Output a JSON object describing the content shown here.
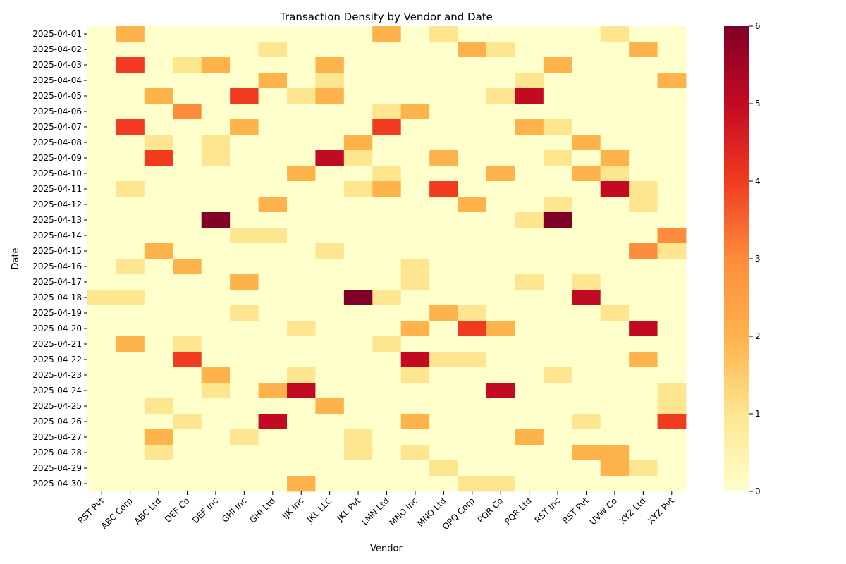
{
  "chart_data": {
    "type": "heatmap",
    "title": "Transaction Density by Vendor and Date",
    "xlabel": "Vendor",
    "ylabel": "Date",
    "x": [
      "RST Pvt",
      "ABC Corp",
      "ABC Ltd",
      "DEF Co",
      "DEF Inc",
      "GHI Inc",
      "GHI Ltd",
      "IJK Inc",
      "JKL LLC",
      "JKL Pvt",
      "LMN Ltd",
      "MNO Inc",
      "MNO Ltd",
      "OPQ Corp",
      "PQR Co",
      "PQR Ltd",
      "RST Inc",
      "RST Pvt",
      "UVW Co",
      "XYZ Ltd",
      "XYZ Pvt"
    ],
    "y": [
      "2025-04-01",
      "2025-04-02",
      "2025-04-03",
      "2025-04-04",
      "2025-04-05",
      "2025-04-06",
      "2025-04-07",
      "2025-04-08",
      "2025-04-09",
      "2025-04-10",
      "2025-04-11",
      "2025-04-12",
      "2025-04-13",
      "2025-04-14",
      "2025-04-15",
      "2025-04-16",
      "2025-04-17",
      "2025-04-18",
      "2025-04-19",
      "2025-04-20",
      "2025-04-21",
      "2025-04-22",
      "2025-04-23",
      "2025-04-24",
      "2025-04-25",
      "2025-04-26",
      "2025-04-27",
      "2025-04-28",
      "2025-04-29",
      "2025-04-30"
    ],
    "values": [
      [
        0,
        2,
        0,
        0,
        0,
        0,
        0,
        0,
        0,
        0,
        2,
        0,
        1,
        0,
        0,
        0,
        0,
        0,
        1,
        0,
        0
      ],
      [
        0,
        0,
        0,
        0,
        0,
        0,
        1,
        0,
        0,
        0,
        0,
        0,
        0,
        2,
        1,
        0,
        0,
        0,
        0,
        2,
        0
      ],
      [
        0,
        4,
        0,
        1,
        2,
        0,
        0,
        0,
        2,
        0,
        0,
        0,
        0,
        0,
        0,
        0,
        2,
        0,
        0,
        0,
        0
      ],
      [
        0,
        0,
        0,
        0,
        0,
        0,
        2,
        0,
        1,
        0,
        0,
        0,
        0,
        0,
        0,
        1,
        0,
        0,
        0,
        0,
        2
      ],
      [
        0,
        0,
        2,
        0,
        0,
        4,
        0,
        1,
        2,
        0,
        0,
        0,
        0,
        0,
        1,
        5,
        0,
        0,
        0,
        0,
        0
      ],
      [
        0,
        0,
        0,
        3,
        0,
        0,
        0,
        0,
        0,
        0,
        1,
        2,
        0,
        0,
        0,
        0,
        0,
        0,
        0,
        0,
        0
      ],
      [
        0,
        4,
        0,
        0,
        0,
        2,
        0,
        0,
        0,
        0,
        4,
        0,
        0,
        0,
        0,
        2,
        1,
        0,
        0,
        0,
        0
      ],
      [
        0,
        0,
        1,
        0,
        1,
        0,
        0,
        0,
        0,
        2,
        0,
        0,
        0,
        0,
        0,
        0,
        0,
        2,
        0,
        0,
        0
      ],
      [
        0,
        0,
        4,
        0,
        1,
        0,
        0,
        0,
        5,
        1,
        0,
        0,
        2,
        0,
        0,
        0,
        1,
        0,
        2,
        0,
        0
      ],
      [
        0,
        0,
        0,
        0,
        0,
        0,
        0,
        2,
        0,
        0,
        1,
        0,
        0,
        0,
        2,
        0,
        0,
        2,
        1,
        0,
        0
      ],
      [
        0,
        1,
        0,
        0,
        0,
        0,
        0,
        0,
        0,
        1,
        2,
        0,
        4,
        0,
        0,
        0,
        0,
        0,
        5,
        1,
        0
      ],
      [
        0,
        0,
        0,
        0,
        0,
        0,
        2,
        0,
        0,
        0,
        0,
        0,
        0,
        2,
        0,
        0,
        1,
        0,
        0,
        1,
        0
      ],
      [
        0,
        0,
        0,
        0,
        6,
        0,
        0,
        0,
        0,
        0,
        0,
        0,
        0,
        0,
        0,
        1,
        6,
        0,
        0,
        0,
        0
      ],
      [
        0,
        0,
        0,
        0,
        0,
        1,
        1,
        0,
        0,
        0,
        0,
        0,
        0,
        0,
        0,
        0,
        0,
        0,
        0,
        0,
        3
      ],
      [
        0,
        0,
        2,
        0,
        0,
        0,
        0,
        0,
        1,
        0,
        0,
        0,
        0,
        0,
        0,
        0,
        0,
        0,
        0,
        3,
        1
      ],
      [
        0,
        1,
        0,
        2,
        0,
        0,
        0,
        0,
        0,
        0,
        0,
        1,
        0,
        0,
        0,
        0,
        0,
        0,
        0,
        0,
        0
      ],
      [
        0,
        0,
        0,
        0,
        0,
        2,
        0,
        0,
        0,
        0,
        0,
        1,
        0,
        0,
        0,
        1,
        0,
        1,
        0,
        0,
        0
      ],
      [
        1,
        1,
        0,
        0,
        0,
        0,
        0,
        0,
        0,
        6,
        1,
        0,
        0,
        0,
        0,
        0,
        0,
        5,
        0,
        0,
        0
      ],
      [
        0,
        0,
        0,
        0,
        0,
        1,
        0,
        0,
        0,
        0,
        0,
        0,
        2,
        1,
        0,
        0,
        0,
        0,
        1,
        0,
        0
      ],
      [
        0,
        0,
        0,
        0,
        0,
        0,
        0,
        1,
        0,
        0,
        0,
        2,
        0,
        4,
        2,
        0,
        0,
        0,
        0,
        5,
        0
      ],
      [
        0,
        2,
        0,
        1,
        0,
        0,
        0,
        0,
        0,
        0,
        1,
        0,
        0,
        0,
        0,
        0,
        0,
        0,
        0,
        0,
        0
      ],
      [
        0,
        0,
        0,
        4,
        0,
        0,
        0,
        0,
        0,
        0,
        0,
        5,
        1,
        1,
        0,
        0,
        0,
        0,
        0,
        2,
        0
      ],
      [
        0,
        0,
        0,
        0,
        2,
        0,
        0,
        1,
        0,
        0,
        0,
        1,
        0,
        0,
        0,
        0,
        1,
        0,
        0,
        0,
        0
      ],
      [
        0,
        0,
        0,
        0,
        1,
        0,
        2,
        5,
        0,
        0,
        0,
        0,
        0,
        0,
        5,
        0,
        0,
        0,
        0,
        0,
        1
      ],
      [
        0,
        0,
        1,
        0,
        0,
        0,
        0,
        0,
        2,
        0,
        0,
        0,
        0,
        0,
        0,
        0,
        0,
        0,
        0,
        0,
        1
      ],
      [
        0,
        0,
        0,
        1,
        0,
        0,
        5,
        0,
        0,
        0,
        0,
        2,
        0,
        0,
        0,
        0,
        0,
        1,
        0,
        0,
        4
      ],
      [
        0,
        0,
        2,
        0,
        0,
        1,
        0,
        0,
        0,
        1,
        0,
        0,
        0,
        0,
        0,
        2,
        0,
        0,
        0,
        0,
        0
      ],
      [
        0,
        0,
        1,
        0,
        0,
        0,
        0,
        0,
        0,
        1,
        0,
        1,
        0,
        0,
        0,
        0,
        0,
        2,
        2,
        0,
        0
      ],
      [
        0,
        0,
        0,
        0,
        0,
        0,
        0,
        0,
        0,
        0,
        0,
        0,
        1,
        0,
        0,
        0,
        0,
        0,
        2,
        1,
        0
      ],
      [
        0,
        0,
        0,
        0,
        0,
        0,
        0,
        2,
        0,
        0,
        0,
        0,
        0,
        1,
        1,
        0,
        0,
        0,
        0,
        0,
        0
      ]
    ],
    "colorbar": {
      "range": [
        0,
        6
      ],
      "ticks": [
        "0",
        "1",
        "2",
        "3",
        "4",
        "5",
        "6"
      ],
      "colormap": "YlOrRd",
      "palette": [
        "#ffffcc",
        "#fee590",
        "#feb24c",
        "#fd8c3c",
        "#f03b20",
        "#c30a23",
        "#800026"
      ]
    }
  }
}
